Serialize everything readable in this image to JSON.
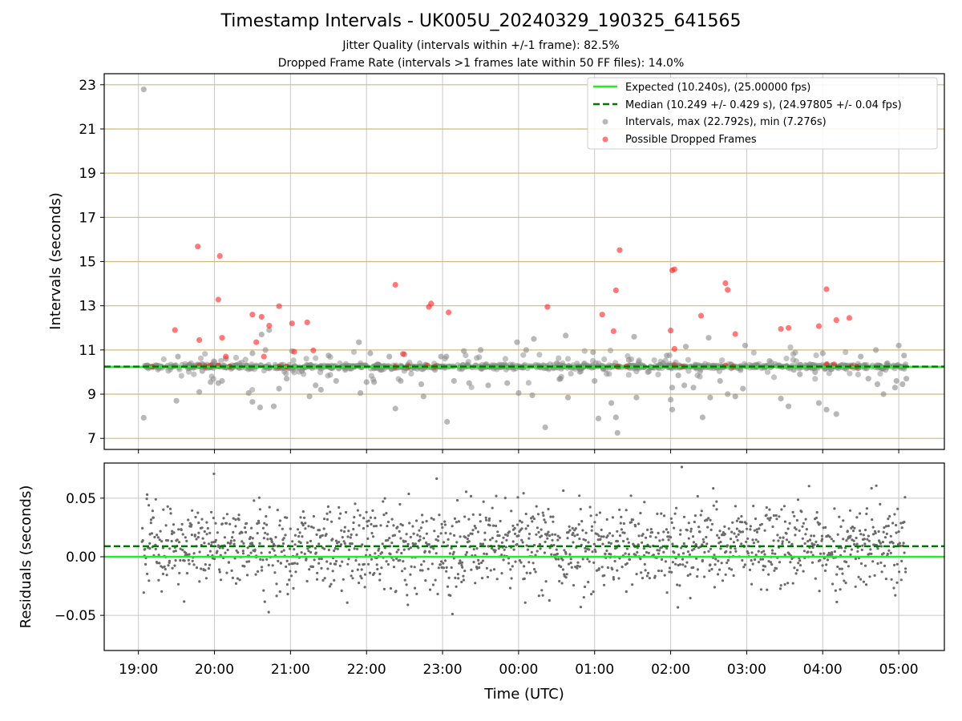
{
  "title": "Timestamp Intervals - UK005U_20240329_190325_641565",
  "subtitles": [
    "Jitter Quality (intervals within +/-1 frame): 82.5%",
    "Dropped Frame Rate (intervals >1 frames late within 50 FF files): 14.0%"
  ],
  "colors": {
    "expected": "#22ee22",
    "median": "#007700",
    "intervals": "#888888",
    "dropped": "#ff2222",
    "hgrid": "#d4b978",
    "vgrid": "#c8c8c8"
  },
  "chart_data": [
    {
      "type": "scatter",
      "ylabel": "Intervals (seconds)",
      "ylim": [
        6.5,
        23.5
      ],
      "yticks": [
        "7",
        "9",
        "11",
        "13",
        "15",
        "17",
        "19",
        "21",
        "23"
      ],
      "xlim_hours": [
        18.55,
        29.6
      ],
      "grid": true,
      "legend_position": "top-right",
      "legend": [
        "Expected (10.240s), (25.00000 fps)",
        "Median (10.249 +/- 0.429 s), (24.97805 +/- 0.04 fps)",
        "Intervals, max (22.792s), min (7.276s)",
        "Possible Dropped Frames"
      ],
      "expected": 10.24,
      "median": 10.249,
      "series": [
        {
          "name": "Intervals, max (22.792s), min (7.276s)",
          "style": "scatter",
          "points": [
            [
              19.07,
              22.79
            ],
            [
              19.07,
              7.93
            ],
            [
              19.5,
              8.7
            ],
            [
              19.52,
              10.7
            ],
            [
              19.8,
              9.1
            ],
            [
              19.84,
              10.05
            ],
            [
              19.95,
              9.55
            ],
            [
              20.05,
              9.5
            ],
            [
              20.1,
              9.6
            ],
            [
              20.15,
              10.6
            ],
            [
              20.5,
              8.65
            ],
            [
              20.5,
              10.85
            ],
            [
              20.45,
              9.05
            ],
            [
              20.6,
              8.4
            ],
            [
              20.62,
              11.7
            ],
            [
              20.67,
              11.0
            ],
            [
              20.72,
              11.9
            ],
            [
              20.78,
              8.45
            ],
            [
              20.85,
              9.25
            ],
            [
              20.95,
              9.7
            ],
            [
              21.02,
              10.95
            ],
            [
              21.15,
              10.05
            ],
            [
              21.25,
              8.9
            ],
            [
              21.33,
              9.4
            ],
            [
              21.4,
              9.2
            ],
            [
              21.5,
              10.75
            ],
            [
              21.6,
              9.6
            ],
            [
              21.72,
              10.1
            ],
            [
              21.9,
              11.35
            ],
            [
              21.92,
              9.05
            ],
            [
              22.0,
              9.55
            ],
            [
              22.05,
              10.85
            ],
            [
              22.1,
              9.55
            ],
            [
              22.2,
              10.1
            ],
            [
              22.3,
              10.7
            ],
            [
              22.38,
              8.35
            ],
            [
              22.45,
              9.6
            ],
            [
              22.5,
              10.8
            ],
            [
              22.72,
              9.45
            ],
            [
              22.75,
              8.9
            ],
            [
              22.9,
              10.1
            ],
            [
              22.98,
              10.7
            ],
            [
              23.05,
              10.7
            ],
            [
              23.06,
              7.75
            ],
            [
              23.15,
              9.6
            ],
            [
              23.28,
              10.95
            ],
            [
              23.35,
              9.5
            ],
            [
              23.5,
              11.0
            ],
            [
              23.6,
              9.4
            ],
            [
              23.8,
              10.25
            ],
            [
              23.85,
              9.5
            ],
            [
              23.98,
              11.35
            ],
            [
              24.0,
              9.05
            ],
            [
              24.1,
              11.0
            ],
            [
              24.2,
              11.5
            ],
            [
              24.18,
              8.95
            ],
            [
              24.35,
              7.5
            ],
            [
              24.55,
              9.7
            ],
            [
              24.62,
              11.65
            ],
            [
              24.65,
              8.85
            ],
            [
              24.98,
              10.9
            ],
            [
              25.0,
              9.6
            ],
            [
              25.05,
              7.9
            ],
            [
              25.22,
              8.6
            ],
            [
              25.28,
              7.95
            ],
            [
              25.3,
              7.25
            ],
            [
              25.45,
              10.55
            ],
            [
              25.52,
              11.6
            ],
            [
              25.55,
              8.85
            ],
            [
              25.7,
              10.0
            ],
            [
              25.9,
              10.4
            ],
            [
              25.95,
              10.75
            ],
            [
              26.0,
              8.75
            ],
            [
              26.02,
              9.3
            ],
            [
              26.02,
              8.3
            ],
            [
              26.1,
              9.85
            ],
            [
              26.18,
              9.4
            ],
            [
              26.2,
              11.15
            ],
            [
              26.3,
              9.3
            ],
            [
              26.42,
              7.95
            ],
            [
              26.5,
              11.55
            ],
            [
              26.52,
              8.85
            ],
            [
              26.65,
              9.6
            ],
            [
              26.85,
              8.9
            ],
            [
              26.75,
              9.0
            ],
            [
              26.95,
              9.25
            ],
            [
              26.98,
              11.2
            ],
            [
              27.3,
              10.5
            ],
            [
              27.45,
              8.8
            ],
            [
              27.55,
              8.45
            ],
            [
              27.62,
              10.1
            ],
            [
              27.7,
              9.9
            ],
            [
              27.9,
              10.0
            ],
            [
              27.95,
              8.6
            ],
            [
              28.0,
              10.85
            ],
            [
              28.05,
              8.3
            ],
            [
              28.18,
              8.1
            ],
            [
              28.3,
              10.3
            ],
            [
              28.5,
              10.7
            ],
            [
              28.6,
              9.7
            ],
            [
              28.7,
              11.0
            ],
            [
              28.72,
              9.45
            ],
            [
              28.8,
              9.0
            ],
            [
              28.95,
              9.3
            ],
            [
              29.0,
              11.2
            ],
            [
              29.05,
              9.45
            ],
            [
              29.1,
              9.7
            ],
            [
              29.07,
              10.75
            ],
            [
              28.97,
              9.6
            ],
            [
              28.85,
              10.4
            ]
          ]
        },
        {
          "name": "Possible Dropped Frames",
          "style": "scatter",
          "points": [
            [
              19.18,
              10.24
            ],
            [
              19.48,
              11.9
            ],
            [
              19.78,
              15.68
            ],
            [
              19.8,
              11.45
            ],
            [
              19.8,
              10.3
            ],
            [
              19.88,
              10.25
            ],
            [
              19.95,
              10.3
            ],
            [
              20.05,
              13.28
            ],
            [
              20.07,
              15.25
            ],
            [
              20.1,
              11.55
            ],
            [
              20.15,
              10.7
            ],
            [
              20.05,
              10.3
            ],
            [
              20.2,
              10.25
            ],
            [
              20.5,
              12.6
            ],
            [
              20.55,
              11.35
            ],
            [
              20.62,
              12.5
            ],
            [
              20.65,
              10.7
            ],
            [
              20.72,
              12.1
            ],
            [
              20.85,
              12.98
            ],
            [
              20.85,
              10.25
            ],
            [
              20.95,
              10.25
            ],
            [
              21.02,
              12.2
            ],
            [
              21.05,
              10.92
            ],
            [
              21.22,
              12.25
            ],
            [
              21.3,
              10.98
            ],
            [
              22.38,
              13.95
            ],
            [
              22.48,
              10.82
            ],
            [
              22.38,
              10.25
            ],
            [
              22.55,
              10.25
            ],
            [
              22.82,
              12.95
            ],
            [
              22.85,
              13.1
            ],
            [
              22.8,
              10.3
            ],
            [
              22.9,
              10.25
            ],
            [
              23.08,
              12.7
            ],
            [
              24.38,
              12.95
            ],
            [
              25.1,
              12.6
            ],
            [
              25.25,
              11.85
            ],
            [
              25.28,
              13.7
            ],
            [
              25.33,
              15.52
            ],
            [
              25.3,
              10.25
            ],
            [
              25.42,
              10.25
            ],
            [
              26.0,
              11.88
            ],
            [
              26.02,
              14.6
            ],
            [
              26.05,
              14.65
            ],
            [
              26.05,
              11.05
            ],
            [
              26.05,
              10.3
            ],
            [
              26.15,
              10.25
            ],
            [
              26.4,
              12.55
            ],
            [
              26.72,
              14.02
            ],
            [
              26.75,
              13.72
            ],
            [
              26.85,
              11.72
            ],
            [
              26.72,
              10.3
            ],
            [
              26.82,
              10.25
            ],
            [
              27.45,
              11.95
            ],
            [
              27.55,
              12.0
            ],
            [
              27.95,
              12.08
            ],
            [
              28.05,
              13.75
            ],
            [
              28.05,
              10.35
            ],
            [
              28.15,
              10.35
            ],
            [
              28.18,
              12.35
            ],
            [
              28.35,
              12.45
            ],
            [
              28.38,
              10.25
            ],
            [
              28.45,
              10.25
            ]
          ]
        }
      ]
    },
    {
      "type": "scatter",
      "xlabel": "Time (UTC)",
      "ylabel": "Residuals (seconds)",
      "ylim": [
        -0.08,
        0.08
      ],
      "yticks": [
        "0.05",
        "0.00",
        "−0.05"
      ],
      "xticks": [
        "19:00",
        "20:00",
        "21:00",
        "22:00",
        "23:00",
        "00:00",
        "01:00",
        "02:00",
        "03:00",
        "04:00",
        "05:00"
      ],
      "grid": true,
      "expected_residual": 0.0,
      "median_residual": 0.009,
      "series": [
        {
          "name": "",
          "style": "scatter",
          "note": "",
          "sample_count": 1600,
          "residual_std": 0.018
        }
      ]
    }
  ]
}
